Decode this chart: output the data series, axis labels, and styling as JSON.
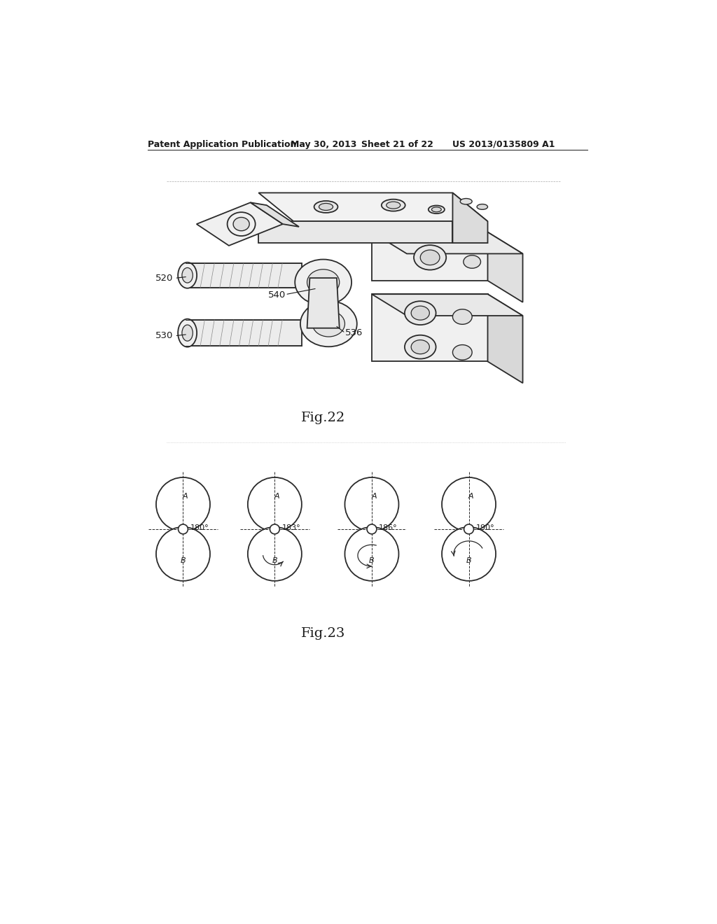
{
  "background_color": "#ffffff",
  "header_text": "Patent Application Publication",
  "header_date": "May 30, 2013",
  "header_sheet": "Sheet 21 of 22",
  "header_patent": "US 2013/0135809 A1",
  "fig22_label": "Fig.22",
  "fig23_label": "Fig.23",
  "labels_fig22": [
    "520",
    "530",
    "540",
    "536"
  ],
  "angles_fig23": [
    "180°",
    "183°",
    "186°",
    "190°"
  ],
  "circle_labels": [
    "A",
    "B"
  ]
}
